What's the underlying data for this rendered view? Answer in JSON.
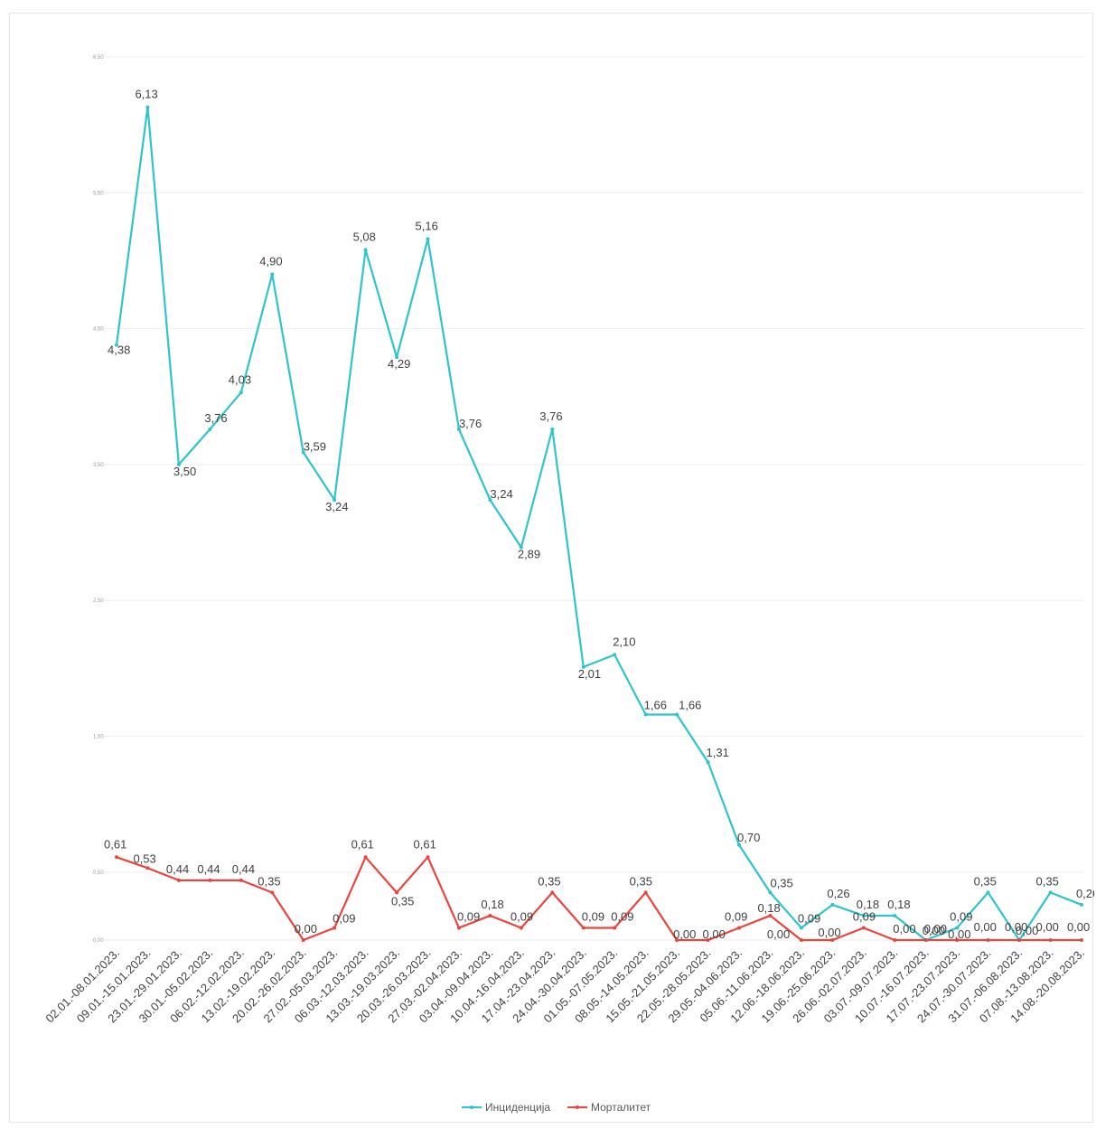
{
  "chart_data": {
    "type": "line",
    "title": "",
    "xlabel": "",
    "ylabel": "",
    "ylim": [
      0,
      6.5
    ],
    "y_ticks": [
      "0,00",
      "0,50",
      "1,50",
      "2,50",
      "3,50",
      "4,50",
      "5,50",
      "6,50"
    ],
    "grid": true,
    "legend_position": "bottom",
    "categories": [
      "02.01.-08.01.2023.",
      "09.01.-15.01.2023.",
      "23.01.-29.01.2023.",
      "30.01.-05.02.2023.",
      "06.02.-12.02.2023.",
      "13.02.-19.02.2023.",
      "20.02.-26.02.2023.",
      "27.02.-05.03.2023.",
      "06.03.-12.03.2023.",
      "13.03.-19.03.2023.",
      "20.03.-26.03.2023.",
      "27.03.-02.04.2023.",
      "03.04.-09.04.2023.",
      "10.04.-16.04.2023.",
      "17.04.-23.04.2023.",
      "24.04.-30.04.2023.",
      "01.05.-07.05.2023.",
      "08.05.-14.05.2023.",
      "15.05.-21.05.2023.",
      "22.05.-28.05.2023.",
      "29.05.-04.06.2023.",
      "05.06.-11.06.2023.",
      "12.06.-18.06.2023.",
      "19.06.-25.06.2023.",
      "26.06.-02.07.2023.",
      "03.07.-09.07.2023.",
      "10.07.-16.07.2023.",
      "17.07.-23.07.2023.",
      "24.07.-30.07.2023.",
      "31.07.-06.08.2023.",
      "07.08.-13.08.2023.",
      "14.08.-20.08.2023."
    ],
    "series": [
      {
        "name": "Инциденција",
        "color": "#2EC4CC",
        "values": [
          4.38,
          6.13,
          3.5,
          3.76,
          4.03,
          4.9,
          3.59,
          3.24,
          5.08,
          4.29,
          5.16,
          3.76,
          3.24,
          2.89,
          3.76,
          2.01,
          2.1,
          1.66,
          1.66,
          1.31,
          0.7,
          0.35,
          0.09,
          0.26,
          0.18,
          0.18,
          0.0,
          0.09,
          0.35,
          0.0,
          0.35,
          0.26
        ],
        "labels": [
          "4,38",
          "6,13",
          "3,50",
          "3,76",
          "4,03",
          "4,90",
          "3,59",
          "3,24",
          "5,08",
          "4,29",
          "5,16",
          "3,76",
          "3,24",
          "2,89",
          "3,76",
          "2,01",
          "2,10",
          "1,66",
          "1,66",
          "1,31",
          "0,70",
          "0,35",
          "0,09",
          "0,26",
          "0,18",
          "0,18",
          "0,00",
          "0,09",
          "0,35",
          "0,00",
          "0,35",
          "0,26"
        ]
      },
      {
        "name": "Морталитет",
        "color": "#E8453C",
        "values": [
          0.61,
          0.53,
          0.44,
          0.44,
          0.44,
          0.35,
          0.0,
          0.09,
          0.61,
          0.35,
          0.61,
          0.09,
          0.18,
          0.09,
          0.35,
          0.09,
          0.09,
          0.35,
          0.0,
          0.0,
          0.09,
          0.18,
          0.0,
          0.0,
          0.09,
          0.0,
          0.0,
          0.0,
          0.0,
          0.0,
          0.0,
          0.0
        ],
        "labels": [
          "0,61",
          "0,53",
          "0,44",
          "0,44",
          "0,44",
          "0,35",
          "0,00",
          "0,09",
          "0,61",
          "0,35",
          "0,61",
          "0,09",
          "0,18",
          "0,09",
          "0,35",
          "0,09",
          "0,09",
          "0,35",
          "0,00",
          "0,00",
          "0,09",
          "0,18",
          "0,00",
          "0,00",
          "0,09",
          "0,00",
          "0,00",
          "0,00",
          "0,00",
          "0,00",
          "0,00",
          "0,00"
        ]
      }
    ]
  }
}
